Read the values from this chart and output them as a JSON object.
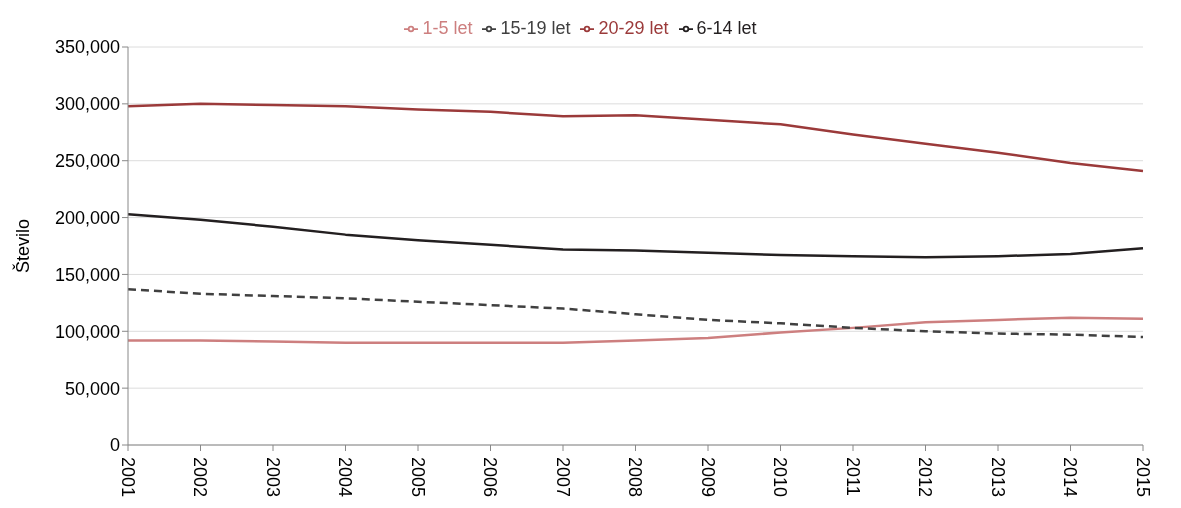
{
  "chart_data": {
    "type": "line",
    "ylabel": "Število",
    "categories": [
      "2001",
      "2002",
      "2003",
      "2004",
      "2005",
      "2006",
      "2007",
      "2008",
      "2009",
      "2010",
      "2011",
      "2012",
      "2013",
      "2014",
      "2015"
    ],
    "series": [
      {
        "name": "1-5 let",
        "color": "#cd7f7f",
        "line_style": "solid",
        "values": [
          92000,
          92000,
          91000,
          90000,
          90000,
          90000,
          90000,
          92000,
          94000,
          99000,
          103000,
          108000,
          110000,
          112000,
          111000
        ]
      },
      {
        "name": "6-14 let",
        "color": "#231f20",
        "line_style": "solid",
        "values": [
          203000,
          198000,
          192000,
          185000,
          180000,
          176000,
          172000,
          171000,
          169000,
          167000,
          166000,
          165000,
          166000,
          168000,
          173000
        ]
      },
      {
        "name": "15-19 let",
        "color": "#404040",
        "line_style": "dashed",
        "values": [
          137000,
          133000,
          131000,
          129000,
          126000,
          123000,
          120000,
          115000,
          110000,
          107000,
          103000,
          100000,
          98000,
          97000,
          95000
        ]
      },
      {
        "name": "20-29 let",
        "color": "#9b3a3a",
        "line_style": "solid",
        "values": [
          298000,
          300000,
          299000,
          298000,
          295000,
          293000,
          289000,
          290000,
          286000,
          282000,
          273000,
          265000,
          257000,
          248000,
          241000
        ]
      }
    ],
    "ylim": [
      0,
      350000
    ],
    "yticks": [
      0,
      {
        "value": 50000,
        "label": "50,000"
      },
      {
        "value": 100000,
        "label": "100,000"
      },
      {
        "value": 150000,
        "label": "150,000"
      },
      {
        "value": 200000,
        "label": "200,000"
      },
      {
        "value": 250000,
        "label": "250,000"
      },
      {
        "value": 300000,
        "label": "300,000"
      },
      {
        "value": 350000,
        "label": "350,000"
      }
    ],
    "grid": "y",
    "legend": "top",
    "marker": "none"
  }
}
